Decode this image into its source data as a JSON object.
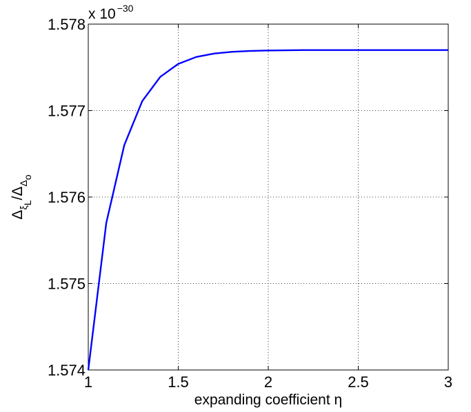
{
  "chart_data": {
    "type": "line",
    "xlabel": "expanding coefficient η",
    "ylabel": {
      "numerator": "Δ",
      "numerator_sub": "ξ",
      "numerator_subsub": "L",
      "slash": "/",
      "denominator": "Δ",
      "denominator_sub": "Δ",
      "denominator_subsub": "o"
    },
    "y_multiplier": {
      "base": "x 10",
      "exponent": "−30"
    },
    "xlim": [
      1,
      3
    ],
    "ylim": [
      1.574,
      1.578
    ],
    "xticks": [
      1,
      1.5,
      2,
      2.5,
      3
    ],
    "xtick_labels": [
      "1",
      "1.5",
      "2",
      "2.5",
      "3"
    ],
    "yticks": [
      1.574,
      1.575,
      1.576,
      1.577,
      1.578
    ],
    "ytick_labels": [
      "1.574",
      "1.575",
      "1.576",
      "1.577",
      "1.578"
    ],
    "grid": true,
    "series": [
      {
        "color": "#0000ff",
        "x": [
          1.0,
          1.1,
          1.2,
          1.3,
          1.4,
          1.5,
          1.6,
          1.7,
          1.8,
          1.9,
          2.0,
          2.2,
          2.4,
          2.6,
          2.8,
          3.0
        ],
        "y": [
          1.574,
          1.5757,
          1.5766,
          1.57711,
          1.57739,
          1.57754,
          1.57762,
          1.57766,
          1.57768,
          1.57769,
          1.577695,
          1.5777,
          1.5777,
          1.5777,
          1.5777,
          1.5777
        ]
      }
    ]
  }
}
